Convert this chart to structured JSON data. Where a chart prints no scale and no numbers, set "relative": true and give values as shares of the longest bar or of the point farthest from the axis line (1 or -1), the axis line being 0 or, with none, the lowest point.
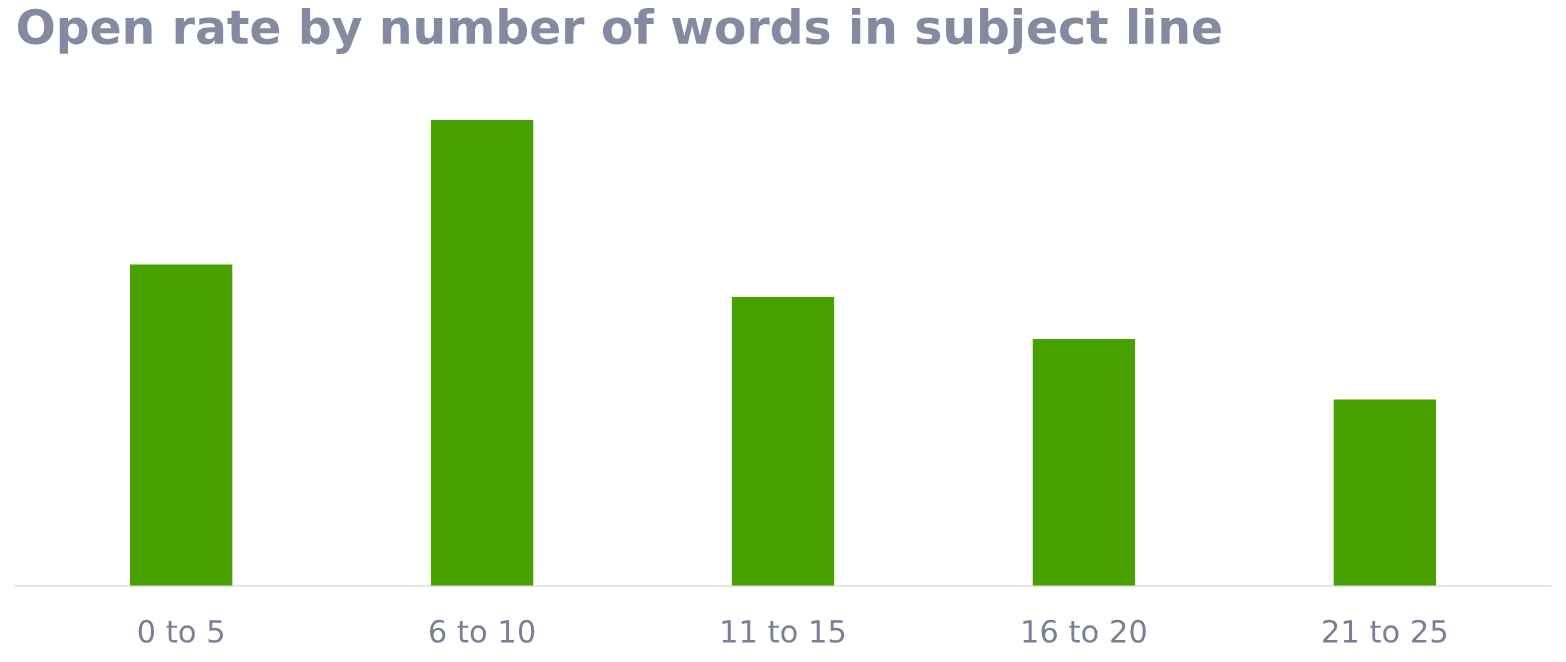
{
  "chart_data": {
    "type": "bar",
    "title": "Open rate by number of words in subject line",
    "categories": [
      "0 to 5",
      "6 to 10",
      "11 to 15",
      "16 to 20",
      "21 to 25"
    ],
    "values": [
      0.69,
      1,
      0.62,
      0.53,
      0.4
    ],
    "color": "#48a100",
    "relative": true
  }
}
